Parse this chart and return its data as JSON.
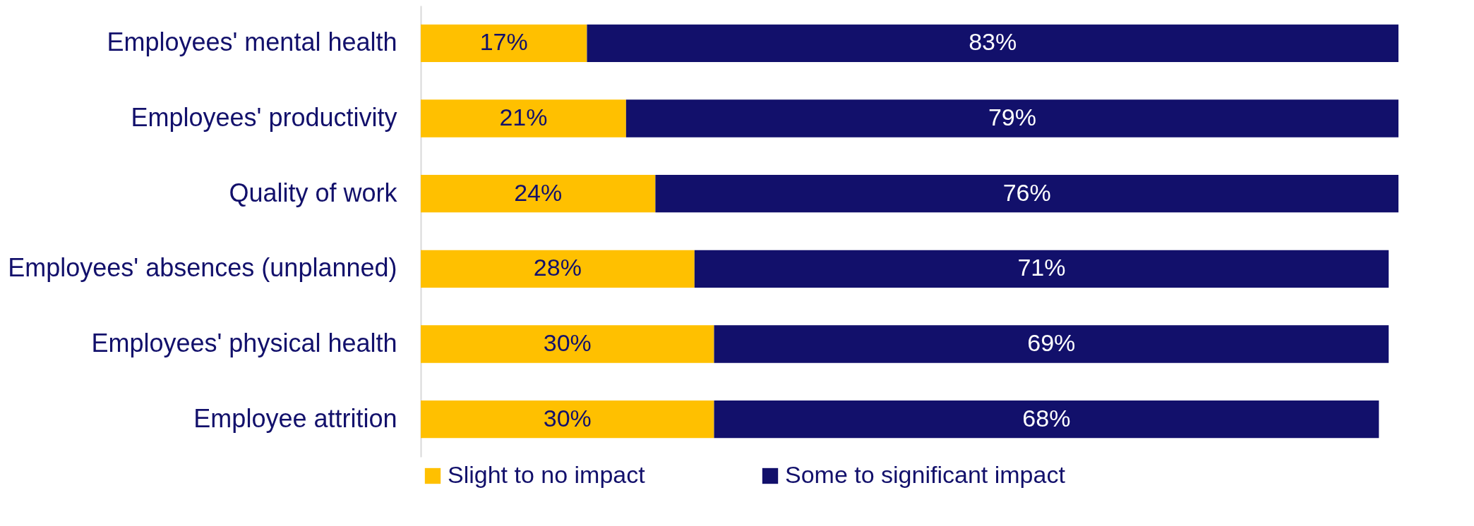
{
  "chart_data": {
    "type": "bar",
    "orientation": "horizontal",
    "stacked": true,
    "legend": "bottom",
    "categories": [
      "Employees' mental health",
      "Employees' productivity",
      "Quality of work",
      "Employees' absences (unplanned)",
      "Employees' physical health",
      "Employee attrition"
    ],
    "series": [
      {
        "name": "Slight to no impact",
        "color": "#ffc000",
        "values": [
          17,
          21,
          24,
          28,
          30,
          30
        ],
        "value_labels": [
          "17%",
          "21%",
          "24%",
          "28%",
          "30%",
          "30%"
        ]
      },
      {
        "name": "Some to significant impact",
        "color": "#12106b",
        "values": [
          83,
          79,
          76,
          71,
          69,
          68
        ],
        "value_labels": [
          "83%",
          "79%",
          "76%",
          "71%",
          "69%",
          "68%"
        ]
      }
    ]
  }
}
